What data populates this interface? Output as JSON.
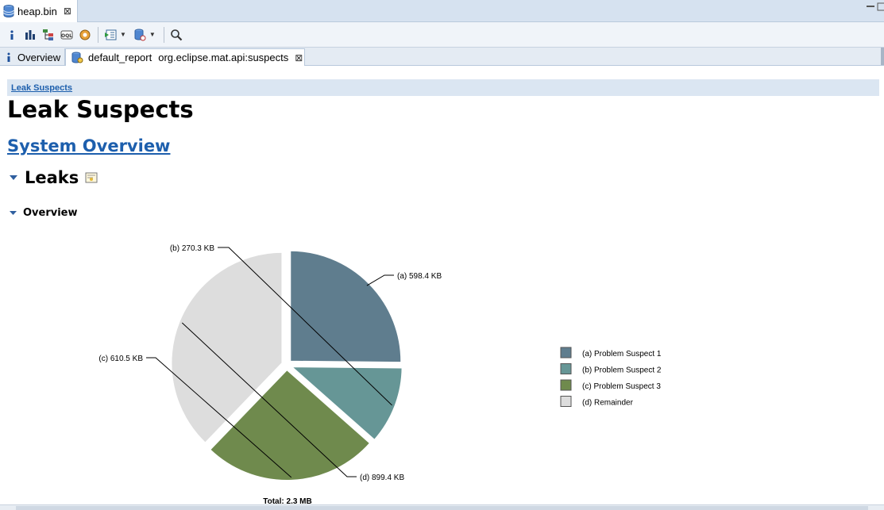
{
  "editor": {
    "tab_label": "heap.bin",
    "close_glyph": "⊠"
  },
  "toolbar": {
    "icons": [
      "info-icon",
      "histogram-icon",
      "dominator-tree-icon",
      "oql-icon",
      "heap-dump-overview-icon",
      "run-report-icon",
      "query-browser-icon",
      "search-icon"
    ]
  },
  "subtabs": {
    "overview_label": "Overview",
    "report_label": "default_report",
    "report_id": "org.eclipse.mat.api:suspects",
    "close_glyph": "⊠"
  },
  "content": {
    "breadcrumb": "Leak Suspects",
    "title": "Leak Suspects",
    "system_overview": "System Overview",
    "leaks_heading": "Leaks",
    "overview_heading": "Overview"
  },
  "chart_data": {
    "type": "pie",
    "title": "",
    "total_label": "Total: 2.3 MB",
    "slices": [
      {
        "key": "(a)",
        "value_kb": 598.4,
        "label": "598.4 KB",
        "legend": "Problem Suspect 1",
        "color": "#5f7d8e"
      },
      {
        "key": "(b)",
        "value_kb": 270.3,
        "label": "270.3 KB",
        "legend": "Problem Suspect 2",
        "color": "#669696"
      },
      {
        "key": "(c)",
        "value_kb": 610.5,
        "label": "610.5 KB",
        "legend": "Problem Suspect 3",
        "color": "#6f8a4d"
      },
      {
        "key": "(d)",
        "value_kb": 899.4,
        "label": "899.4 KB",
        "legend": "Remainder",
        "color": "#dddddd"
      }
    ]
  }
}
